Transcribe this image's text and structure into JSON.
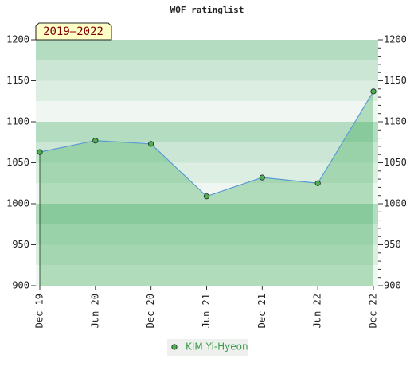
{
  "chart_data": {
    "type": "line",
    "title": "WOF ratinglist",
    "badge": "2019–2022",
    "categories": [
      "Dec 19",
      "Jun 20",
      "Dec 20",
      "Jun 21",
      "Dec 21",
      "Jun 22",
      "Dec 22"
    ],
    "series": [
      {
        "name": "KIM Yi-Hyeon",
        "color": "#5b9bd5",
        "values": [
          1063,
          1077,
          1073,
          1009,
          1032,
          1025,
          1137
        ]
      }
    ],
    "ylim": [
      900,
      1200
    ],
    "yticks": [
      900,
      950,
      1000,
      1050,
      1100,
      1150,
      1200
    ],
    "y2lim": [
      900,
      1200
    ],
    "y2ticks": [
      900,
      950,
      1000,
      1050,
      1100,
      1150,
      1200
    ]
  }
}
